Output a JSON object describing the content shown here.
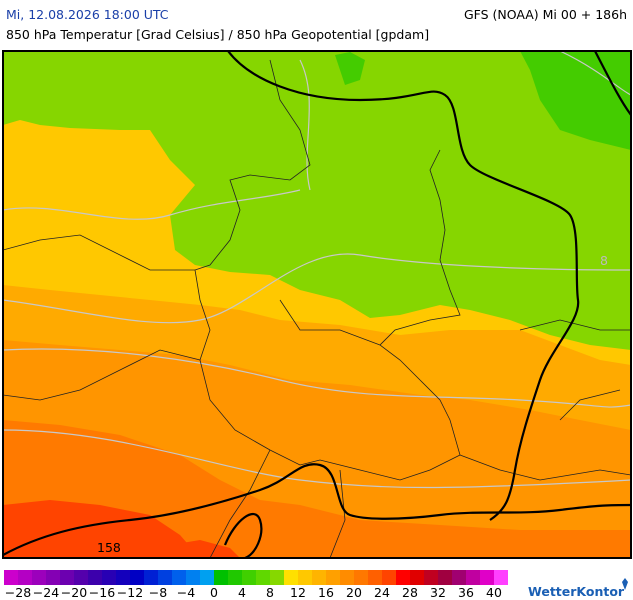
{
  "header": {
    "datetime": "Mi, 12.08.2026 18:00 UTC",
    "model": "GFS (NOAA) Mi 00 + 186h",
    "subtitle": "850 hPa Temperatur [Grad Celsius] / 850 hPa Geopotential [gpdam]"
  },
  "map": {
    "contour_labels": [
      "158",
      "8"
    ]
  },
  "legend": {
    "ticks": [
      "−28",
      "−24",
      "−20",
      "−16",
      "−12",
      "−8",
      "−4",
      "0",
      "4",
      "8",
      "12",
      "16",
      "20",
      "24",
      "28",
      "32",
      "36",
      "40"
    ],
    "colors": [
      "#cc00cc",
      "#b400c4",
      "#9c00bc",
      "#8400b4",
      "#6c00b0",
      "#5400ac",
      "#3c00ac",
      "#2800b4",
      "#1400bc",
      "#0000c4",
      "#0020d4",
      "#0040e0",
      "#0060ec",
      "#0080f0",
      "#00a0f0",
      "#00c000",
      "#20c800",
      "#40d000",
      "#60d800",
      "#86d800",
      "#ffe000",
      "#ffc800",
      "#ffb400",
      "#ffa000",
      "#ff8c00",
      "#ff7800",
      "#ff6000",
      "#ff4400",
      "#ff0000",
      "#e00000",
      "#c00020",
      "#a00040",
      "#a00070",
      "#c000a0",
      "#e000c8",
      "#ff40ff"
    ]
  },
  "logo": "WetterKontor"
}
